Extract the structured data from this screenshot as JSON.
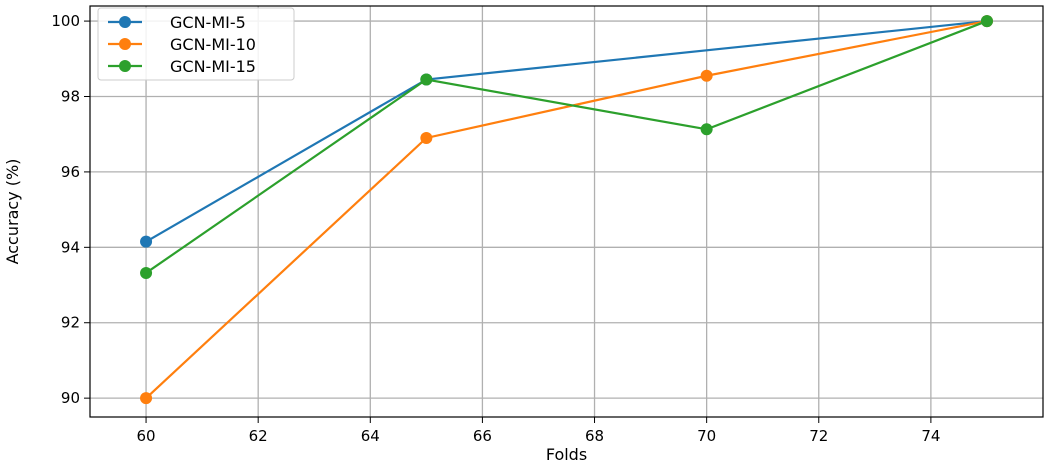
{
  "chart_data": {
    "type": "line",
    "title": "",
    "xlabel": "Folds",
    "ylabel": "Accuracy (%)",
    "x": [
      60,
      65,
      70,
      75
    ],
    "xlim": [
      59,
      76
    ],
    "ylim": [
      89.5,
      100.4
    ],
    "xticks": [
      60,
      62,
      64,
      66,
      68,
      70,
      72,
      74
    ],
    "yticks": [
      90,
      92,
      94,
      96,
      98,
      100
    ],
    "grid": true,
    "legend_position": "top-left",
    "series": [
      {
        "name": "GCN-MI-5",
        "color": "#1f77b4",
        "values": [
          94.15,
          98.45,
          null,
          100.0
        ],
        "x": [
          60,
          65,
          70,
          75
        ]
      },
      {
        "name": "GCN-MI-10",
        "color": "#ff7f0e",
        "values": [
          90.0,
          96.9,
          98.55,
          100.0
        ],
        "x": [
          60,
          65,
          70,
          75
        ]
      },
      {
        "name": "GCN-MI-15",
        "color": "#2ca02c",
        "values": [
          93.32,
          98.45,
          97.13,
          100.0
        ],
        "x": [
          60,
          65,
          70,
          75
        ]
      }
    ]
  }
}
